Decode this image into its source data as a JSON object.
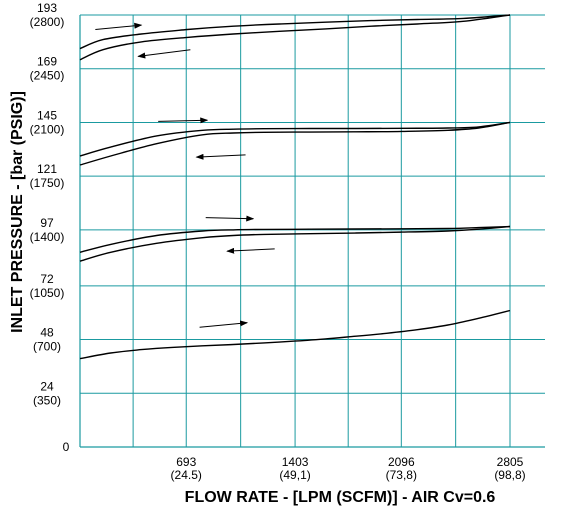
{
  "chart_data": {
    "type": "line",
    "title": "",
    "xlabel": "FLOW RATE - [LPM (SCFM)] - AIR  Cv=0.6",
    "ylabel": "INLET PRESSURE - [bar (PSIG)]",
    "xlim": [
      0,
      2805
    ],
    "ylim": [
      0,
      193
    ],
    "grid": true,
    "grid_color": "#1a9aa0",
    "line_color": "#000000",
    "x_ticks": [
      {
        "value": 693,
        "label": "693",
        "sublabel": "(24.5)"
      },
      {
        "value": 1403,
        "label": "1403",
        "sublabel": "(49,1)"
      },
      {
        "value": 2096,
        "label": "2096",
        "sublabel": "(73,8)"
      },
      {
        "value": 2805,
        "label": "2805",
        "sublabel": "(98,8)"
      }
    ],
    "y_ticks": [
      {
        "value": 0,
        "label": "0",
        "sublabel": ""
      },
      {
        "value": 24,
        "label": "24",
        "sublabel": "(350)"
      },
      {
        "value": 48,
        "label": "48",
        "sublabel": "(700)"
      },
      {
        "value": 72,
        "label": "72",
        "sublabel": "(1050)"
      },
      {
        "value": 97,
        "label": "97",
        "sublabel": "(1400)"
      },
      {
        "value": 121,
        "label": "121",
        "sublabel": "(1750)"
      },
      {
        "value": 145,
        "label": "145",
        "sublabel": "(2100)"
      },
      {
        "value": 169,
        "label": "169",
        "sublabel": "(2450)"
      },
      {
        "value": 193,
        "label": "193",
        "sublabel": "(2800)"
      }
    ],
    "series": [
      {
        "x": [
          0,
          150,
          400,
          700,
          1000,
          1300,
          1600,
          1900,
          2200,
          2500,
          2805
        ],
        "y": [
          178,
          182,
          184.5,
          186.5,
          188,
          189,
          189.8,
          190.5,
          191,
          191.5,
          193
        ]
      },
      {
        "x": [
          0,
          150,
          400,
          700,
          1000,
          1300,
          1600,
          1900,
          2200,
          2500,
          2805
        ],
        "y": [
          173,
          177.5,
          181,
          183,
          184.5,
          185.7,
          186.8,
          188,
          189,
          190.2,
          193
        ]
      },
      {
        "x": [
          0,
          200,
          500,
          800,
          1000,
          1200,
          1500,
          1800,
          2100,
          2400,
          2600,
          2805
        ],
        "y": [
          130,
          134,
          139,
          141.5,
          142,
          142.2,
          142.3,
          142.3,
          142.4,
          142.5,
          143,
          145
        ]
      },
      {
        "x": [
          0,
          200,
          500,
          800,
          1000,
          1200,
          1500,
          1800,
          2100,
          2400,
          2600,
          2805
        ],
        "y": [
          126,
          130,
          135.5,
          139.5,
          140.3,
          140.6,
          140.7,
          140.8,
          141,
          141.5,
          142.5,
          145
        ]
      },
      {
        "x": [
          0,
          200,
          500,
          800,
          1000,
          1200,
          1500,
          1800,
          2100,
          2400,
          2600,
          2805
        ],
        "y": [
          87,
          90.5,
          94.5,
          96.5,
          97,
          97.2,
          97.3,
          97.4,
          97.5,
          97.6,
          98,
          98.5
        ]
      },
      {
        "x": [
          0,
          200,
          500,
          800,
          1000,
          1200,
          1500,
          1800,
          2100,
          2400,
          2600,
          2805
        ],
        "y": [
          83,
          87,
          91,
          93.5,
          94.5,
          95,
          95.3,
          95.6,
          96,
          96.5,
          97.3,
          98.5
        ]
      },
      {
        "x": [
          0,
          200,
          400,
          600,
          800,
          1000,
          1200,
          1400,
          1600,
          1800,
          2000,
          2200,
          2400,
          2600,
          2805
        ],
        "y": [
          39.5,
          42,
          43.5,
          44.5,
          45.2,
          45.8,
          46.5,
          47.3,
          48.3,
          49.5,
          50.8,
          52.4,
          54.5,
          57.5,
          61
        ]
      }
    ],
    "annotations": [
      {
        "type": "arrow",
        "direction": "right",
        "x_from": 100,
        "y_from": 186.5,
        "x_to": 400,
        "y_to": 188.5
      },
      {
        "type": "arrow",
        "direction": "left",
        "x_from": 720,
        "y_from": 177.5,
        "x_to": 380,
        "y_to": 174.5
      },
      {
        "type": "arrow",
        "direction": "right",
        "x_from": 510,
        "y_from": 145.5,
        "x_to": 830,
        "y_to": 146
      },
      {
        "type": "arrow",
        "direction": "left",
        "x_from": 1080,
        "y_from": 130.5,
        "x_to": 760,
        "y_to": 129.5
      },
      {
        "type": "arrow",
        "direction": "right",
        "x_from": 820,
        "y_from": 102.5,
        "x_to": 1130,
        "y_to": 102
      },
      {
        "type": "arrow",
        "direction": "left",
        "x_from": 1270,
        "y_from": 88.5,
        "x_to": 960,
        "y_to": 87.5
      },
      {
        "type": "arrow",
        "direction": "right",
        "x_from": 780,
        "y_from": 53.5,
        "x_to": 1090,
        "y_to": 55.5
      }
    ]
  }
}
